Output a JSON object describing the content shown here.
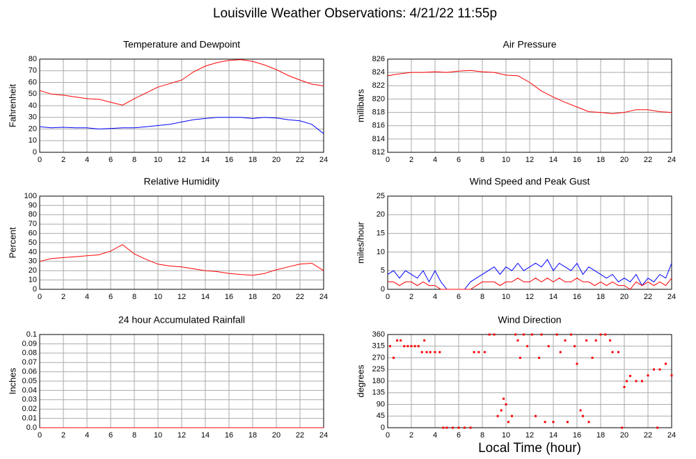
{
  "title": "Louisville Weather Observations: 4/21/22 11:55p",
  "chart_data": [
    {
      "type": "line",
      "title": "Temperature and Dewpoint",
      "ylabel": "Fahrenheit",
      "x": [
        0,
        1,
        2,
        3,
        4,
        5,
        6,
        7,
        8,
        9,
        10,
        11,
        12,
        13,
        14,
        15,
        16,
        17,
        18,
        19,
        20,
        21,
        22,
        23,
        24
      ],
      "series": [
        {
          "color": "#ff0000",
          "values": [
            53,
            50,
            49,
            47.5,
            46,
            45.5,
            43,
            40.5,
            46,
            51,
            56,
            59,
            62,
            69,
            74,
            77,
            79,
            79.5,
            78,
            75,
            71,
            66,
            62,
            58.5,
            57
          ]
        },
        {
          "color": "#0000ff",
          "values": [
            22,
            21,
            21.5,
            21,
            21,
            20,
            20.5,
            21,
            21,
            22,
            23,
            24,
            26,
            28,
            29,
            30,
            30,
            30,
            29,
            30,
            29.5,
            28,
            27,
            24,
            16
          ]
        }
      ],
      "xlim": [
        0,
        24
      ],
      "xticks": [
        0,
        2,
        4,
        6,
        8,
        10,
        12,
        14,
        16,
        18,
        20,
        22,
        24
      ],
      "ylim": [
        0,
        80
      ],
      "yticks": [
        0,
        10,
        20,
        30,
        40,
        50,
        60,
        70,
        80
      ],
      "grid": true
    },
    {
      "type": "line",
      "title": "Air Pressure",
      "ylabel": "millibars",
      "x": [
        0,
        1,
        2,
        3,
        4,
        5,
        6,
        7,
        8,
        9,
        10,
        11,
        12,
        13,
        14,
        15,
        16,
        17,
        18,
        19,
        20,
        21,
        22,
        23,
        24
      ],
      "series": [
        {
          "color": "#ff0000",
          "values": [
            823.5,
            823.8,
            824,
            824,
            824.1,
            824,
            824.2,
            824.3,
            824.1,
            824,
            823.6,
            823.5,
            822.5,
            821.2,
            820.3,
            819.5,
            818.8,
            818.1,
            818,
            817.8,
            818,
            818.4,
            818.4,
            818.1,
            818
          ]
        }
      ],
      "xlim": [
        0,
        24
      ],
      "xticks": [
        0,
        2,
        4,
        6,
        8,
        10,
        12,
        14,
        16,
        18,
        20,
        22,
        24
      ],
      "ylim": [
        812,
        826
      ],
      "yticks": [
        812,
        814,
        816,
        818,
        820,
        822,
        824,
        826
      ],
      "grid": true
    },
    {
      "type": "line",
      "title": "Relative Humidity",
      "ylabel": "Percent",
      "x": [
        0,
        1,
        2,
        3,
        4,
        5,
        6,
        7,
        8,
        9,
        10,
        11,
        12,
        13,
        14,
        15,
        16,
        17,
        18,
        19,
        20,
        21,
        22,
        23,
        24
      ],
      "series": [
        {
          "color": "#ff0000",
          "values": [
            30,
            33,
            34,
            35,
            36,
            37,
            41,
            48,
            38,
            32,
            27,
            25,
            24,
            22,
            20,
            19,
            17,
            16,
            15,
            17,
            21,
            24,
            27,
            28,
            20
          ]
        }
      ],
      "xlim": [
        0,
        24
      ],
      "xticks": [
        0,
        2,
        4,
        6,
        8,
        10,
        12,
        14,
        16,
        18,
        20,
        22,
        24
      ],
      "ylim": [
        0,
        100
      ],
      "yticks": [
        0,
        10,
        20,
        30,
        40,
        50,
        60,
        70,
        80,
        90,
        100
      ],
      "grid": true
    },
    {
      "type": "line",
      "title": "Wind Speed and Peak Gust",
      "ylabel": "miles/hour",
      "x": [
        0,
        0.5,
        1,
        1.5,
        2,
        2.5,
        3,
        3.5,
        4,
        4.5,
        5,
        5.5,
        6,
        6.5,
        7,
        7.5,
        8,
        8.5,
        9,
        9.5,
        10,
        10.5,
        11,
        11.5,
        12,
        12.5,
        13,
        13.5,
        14,
        14.5,
        15,
        15.5,
        16,
        16.5,
        17,
        17.5,
        18,
        18.5,
        19,
        19.5,
        20,
        20.5,
        21,
        21.5,
        22,
        22.5,
        23,
        23.5,
        24
      ],
      "series": [
        {
          "color": "#0000ff",
          "values": [
            4,
            5,
            3,
            5,
            4,
            3,
            5,
            2,
            5,
            2,
            0,
            0,
            0,
            0,
            2,
            3,
            4,
            5,
            6,
            4,
            6,
            5,
            7,
            5,
            6,
            7,
            6,
            8,
            5,
            7,
            6,
            5,
            7,
            4,
            6,
            5,
            4,
            3,
            4,
            2,
            3,
            2,
            4,
            1,
            3,
            2,
            4,
            3,
            7
          ]
        },
        {
          "color": "#ff0000",
          "values": [
            2,
            2,
            1,
            2,
            2,
            1,
            2,
            1,
            1,
            0,
            0,
            0,
            0,
            0,
            0,
            1,
            2,
            2,
            2,
            1,
            2,
            2,
            3,
            2,
            2,
            3,
            2,
            3,
            2,
            3,
            2,
            2,
            3,
            2,
            2,
            1,
            2,
            1,
            2,
            1,
            1,
            0,
            2,
            1,
            2,
            1,
            2,
            1,
            3
          ]
        }
      ],
      "xlim": [
        0,
        24
      ],
      "xticks": [
        0,
        2,
        4,
        6,
        8,
        10,
        12,
        14,
        16,
        18,
        20,
        22,
        24
      ],
      "ylim": [
        0,
        25
      ],
      "yticks": [
        0,
        5,
        10,
        15,
        20,
        25
      ],
      "grid": true
    },
    {
      "type": "line",
      "title": "24 hour Accumulated Rainfall",
      "ylabel": "Inches",
      "x": [
        0,
        24
      ],
      "series": [
        {
          "color": "#ff0000",
          "values": [
            0,
            0
          ]
        }
      ],
      "xlim": [
        0,
        24
      ],
      "xticks": [
        0,
        2,
        4,
        6,
        8,
        10,
        12,
        14,
        16,
        18,
        20,
        22,
        24
      ],
      "ylim": [
        0,
        0.1
      ],
      "yticks": [
        {
          "value": 0,
          "label": "0.0"
        },
        0.01,
        0.02,
        0.03,
        0.04,
        0.05,
        0.06,
        0.07,
        0.08,
        0.09,
        0.1
      ],
      "grid": true
    },
    {
      "type": "scatter",
      "title": "Wind Direction",
      "ylabel": "degrees",
      "xlabel": "Local Time (hour)",
      "x": [
        0.2,
        0.5,
        0.8,
        1.1,
        1.4,
        1.7,
        2,
        2.3,
        2.6,
        2.9,
        3.1,
        3.3,
        3.6,
        4,
        4.4,
        4.7,
        5,
        5.5,
        6,
        6.5,
        7,
        7.3,
        7.7,
        8.2,
        8.6,
        9,
        9.3,
        9.6,
        9.8,
        10,
        10.2,
        10.5,
        10.8,
        11,
        11.2,
        11.5,
        11.8,
        12.2,
        12.5,
        12.8,
        13,
        13.3,
        13.6,
        14,
        14.3,
        14.6,
        15,
        15.2,
        15.5,
        15.8,
        16,
        16.3,
        16.5,
        16.8,
        17,
        17.3,
        17.6,
        18,
        18.4,
        18.8,
        19,
        19.5,
        19.8,
        20,
        20.2,
        20.5,
        21,
        21.5,
        22,
        22.5,
        22.8,
        23,
        23.5,
        24
      ],
      "series": [
        {
          "color": "#ff0000",
          "values": [
            315,
            270,
            337,
            337,
            315,
            315,
            315,
            315,
            315,
            292,
            337,
            292,
            292,
            292,
            292,
            0,
            0,
            0,
            0,
            0,
            0,
            292,
            292,
            292,
            360,
            360,
            45,
            67,
            112,
            90,
            22,
            45,
            360,
            337,
            270,
            360,
            315,
            360,
            45,
            270,
            360,
            22,
            315,
            22,
            360,
            292,
            337,
            22,
            360,
            315,
            247,
            67,
            45,
            337,
            22,
            270,
            337,
            360,
            360,
            337,
            292,
            292,
            0,
            157,
            180,
            200,
            180,
            180,
            202,
            225,
            0,
            225,
            247,
            202
          ]
        }
      ],
      "xlim": [
        0,
        24
      ],
      "xticks": [
        0,
        2,
        4,
        6,
        8,
        10,
        12,
        14,
        16,
        18,
        20,
        22,
        24
      ],
      "ylim": [
        0,
        360
      ],
      "yticks": [
        0,
        45,
        90,
        135,
        180,
        225,
        270,
        315,
        360
      ],
      "grid": true
    }
  ]
}
